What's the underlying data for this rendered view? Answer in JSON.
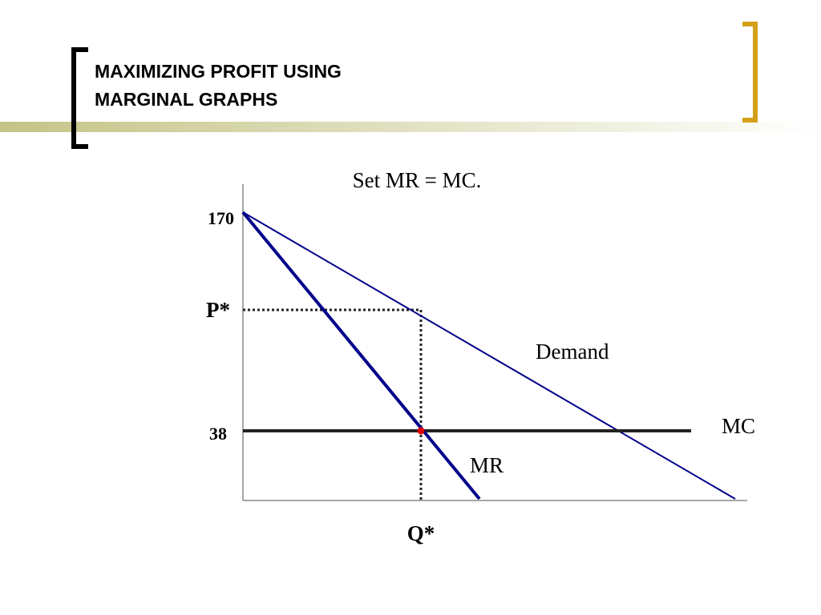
{
  "header": {
    "title_lines": [
      "MAXIMIZING PROFIT USING",
      "MARGINAL GRAPHS"
    ]
  },
  "diagram": {
    "caption": "Set  MR = MC.",
    "axis_labels": {
      "top_price": 170,
      "price": "P*",
      "mc_level": 38,
      "quantity": "Q*"
    },
    "curves": {
      "demand": "Demand",
      "mc": "MC",
      "mr": "MR"
    }
  }
}
